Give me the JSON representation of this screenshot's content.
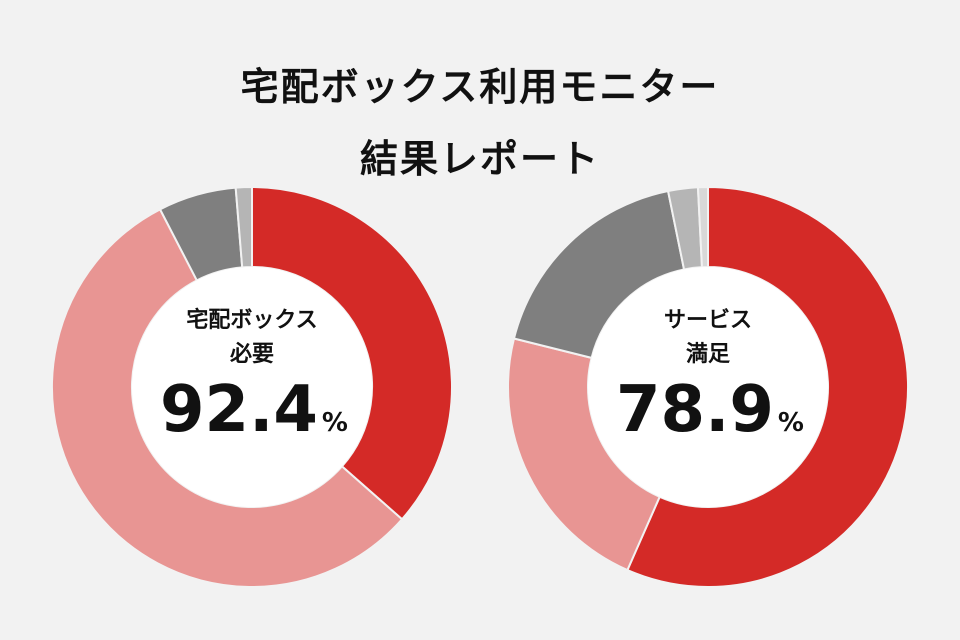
{
  "header": {
    "title_line1": "宅配ボックス利用モニター",
    "title_line2": "結果レポート"
  },
  "chart_data": [
    {
      "type": "pie",
      "variant": "donut",
      "center_label": [
        "宅配ボックス",
        "必要"
      ],
      "center_value": "92.4",
      "center_unit": "%",
      "values": [
        36.5,
        55.9,
        6.3,
        1.3
      ],
      "colors": [
        "#d42a27",
        "#e89593",
        "#7f7f7f",
        "#b5b5b5"
      ]
    },
    {
      "type": "pie",
      "variant": "donut",
      "center_label": [
        "サービス",
        "満足"
      ],
      "center_value": "78.9",
      "center_unit": "%",
      "values": [
        56.6,
        22.3,
        17.9,
        2.4,
        0.8
      ],
      "colors": [
        "#d42a27",
        "#e89593",
        "#7f7f7f",
        "#b5b5b5",
        "#d8d8d8"
      ]
    }
  ]
}
